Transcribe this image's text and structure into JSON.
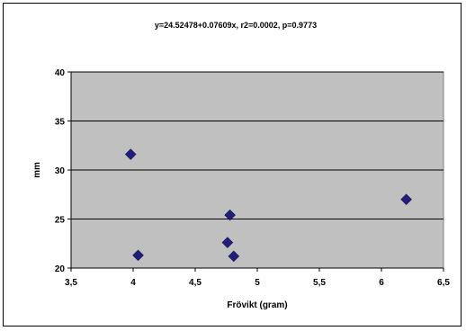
{
  "chart_data": {
    "type": "scatter",
    "title": "y=24.52478+0.07609x, r2=0.0002, p=0.9773",
    "xlabel": "Frövikt (gram)",
    "ylabel": "mm",
    "xlim": [
      3.5,
      6.5
    ],
    "ylim": [
      20,
      40
    ],
    "xticks": [
      3.5,
      4,
      4.5,
      5,
      5.5,
      6,
      6.5
    ],
    "xtick_labels": [
      "3,5",
      "4",
      "4,5",
      "5",
      "5,5",
      "6",
      "6,5"
    ],
    "yticks": [
      20,
      25,
      30,
      35,
      40
    ],
    "ytick_labels": [
      "20",
      "25",
      "30",
      "35",
      "40"
    ],
    "grid": "horizontal",
    "legend": "none",
    "colors": {
      "plot_background": "#c0c0c0",
      "marker": "#1f1f7a",
      "gridline": "#000000"
    },
    "marker": "diamond",
    "series": [
      {
        "points": [
          {
            "x": 3.98,
            "y": 31.6
          },
          {
            "x": 4.04,
            "y": 21.3
          },
          {
            "x": 4.76,
            "y": 22.6
          },
          {
            "x": 4.78,
            "y": 25.4
          },
          {
            "x": 4.81,
            "y": 21.2
          },
          {
            "x": 6.2,
            "y": 27.0
          }
        ]
      }
    ]
  }
}
